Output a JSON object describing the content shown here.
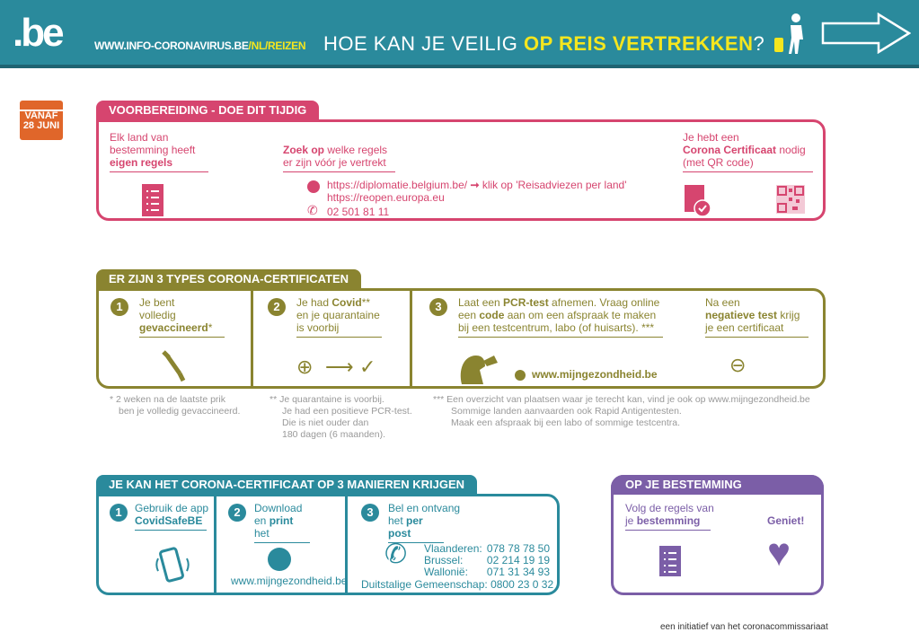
{
  "header": {
    "logo": ".be",
    "url_main": "WWW.INFO-CORONAVIRUS.BE",
    "url_sep1": "/",
    "url_nl": "NL",
    "url_sep2": "/",
    "url_reizen": "REIZEN",
    "title_a": "HOE KAN JE VEILIG ",
    "title_b": "OP REIS VERTREKKEN",
    "title_c": "?"
  },
  "calendar": {
    "line1": "VANAF",
    "line2": "28 JUNI"
  },
  "prep": {
    "tab": "VOORBEREIDING - DOE DIT TIJDIG",
    "col1": {
      "l1": "Elk land van",
      "l2": "bestemming heeft",
      "l3": "eigen regels"
    },
    "col2": {
      "bold": "Zoek op",
      "rest": " welke regels",
      "l2": "er zijn vóór je vertrekt",
      "link1": "https://diplomatie.belgium.be/",
      "link1_action": "klik op 'Reisadviezen per land'",
      "link2": "https://reopen.europa.eu",
      "phone": "02 501 81 11"
    },
    "col3": {
      "l1": "Je hebt een",
      "bold": "Corona Certificaat",
      "rest": " nodig",
      "l3": "(met QR code)"
    }
  },
  "types": {
    "tab": "ER ZIJN 3 TYPES CORONA-CERTIFICATEN",
    "c1": {
      "num": "1",
      "l1": "Je bent",
      "l2": "volledig",
      "bold": "gevaccineerd",
      "star": "*"
    },
    "c2": {
      "num": "2",
      "a": "Je had ",
      "bold": "Covid",
      "star": "**",
      "l2": "en je quarantaine",
      "l3": "is voorbij"
    },
    "c3": {
      "num": "3",
      "a": "Laat een ",
      "b1": "PCR-test",
      "c": " afnemen. Vraag online",
      "d": "een ",
      "b2": "code",
      "e": " aan om een afspraak te maken",
      "l3": "bij een testcentrum, labo (of huisarts). ***",
      "link": "www.mijngezondheid.be"
    },
    "c4": {
      "l1": "Na een",
      "bold": "negatieve test",
      "rest": " krijg",
      "l3": "je een certificaat"
    },
    "notes": {
      "n1a": "* 2 weken na de laatste prik",
      "n1b": "ben je volledig gevaccineerd.",
      "n2a": "** Je quarantaine is voorbij.",
      "n2b": "Je had een positieve PCR-test.",
      "n2c": "Die is niet ouder dan",
      "n2d": "180 dagen (6 maanden).",
      "n3a": "*** Een overzicht van plaatsen waar je terecht kan, vind je ook op www.mijngezondheid.be",
      "n3b": "Sommige landen aanvaarden ook Rapid Antigentesten.",
      "n3c": "Maak een afspraak bij een labo of sommige testcentra."
    }
  },
  "ways": {
    "tab": "JE KAN HET CORONA-CERTIFICAAT OP 3 MANIEREN KRIJGEN",
    "w1": {
      "num": "1",
      "l1": "Gebruik de app",
      "bold": "CovidSafeBE"
    },
    "w2": {
      "num": "2",
      "l1": "Download",
      "a": "en ",
      "bold": "print",
      "rest": " het",
      "link": "www.mijngezondheid.be"
    },
    "w3": {
      "num": "3",
      "l1": "Bel en ontvang",
      "a": "het ",
      "bold": "per post",
      "phones": [
        {
          "region": "Vlaanderen:",
          "number": "078 78 78 50"
        },
        {
          "region": "Brussel:",
          "number": "02 214 19 19"
        },
        {
          "region": "Wallonië:",
          "number": "071 31 34 93"
        }
      ],
      "dg": "Duitstalige Gemeenschap: 0800 23 0 32"
    }
  },
  "dest": {
    "tab": "OP JE BESTEMMING",
    "l1": "Volg de regels van",
    "a": "je ",
    "bold": "bestemming",
    "enjoy": "Geniet!"
  },
  "footer": "een initiatief van het coronacommissariaat",
  "colors": {
    "header": "#2a8a9c",
    "yellow": "#f5e61e",
    "pink": "#d6456f",
    "olive": "#8a8430",
    "teal": "#2a8a9c",
    "purple": "#7b5ea7",
    "orange": "#e0662a"
  }
}
